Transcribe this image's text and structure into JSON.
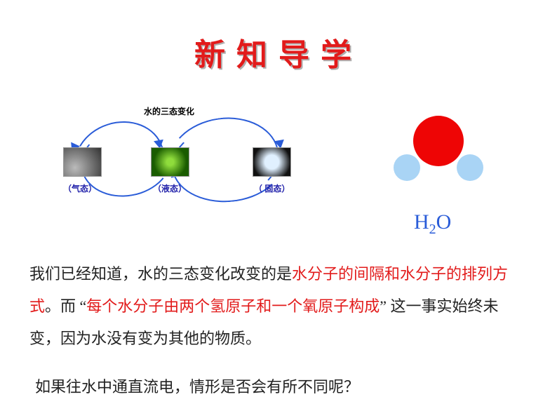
{
  "colors": {
    "title_red": "#e21b1b",
    "title_shadow": "#b0b0b0",
    "arrow_blue": "#2a5cd8",
    "label_blue": "#2020aa",
    "text_black": "#222222",
    "text_red": "#e21b1b",
    "atom_red": "#ee0505",
    "atom_blue": "#a9d4f5",
    "formula_blue": "#2a5cd8",
    "background": "#ffffff"
  },
  "title": {
    "text": "新知导学",
    "fontsize": 44
  },
  "diagram": {
    "caption": "水的三态变化",
    "states": {
      "gas": "（气态）",
      "liquid": "（液态）",
      "solid": "（ 固态）"
    }
  },
  "molecule": {
    "formula_h": "H",
    "formula_sub": "2",
    "formula_o": "O"
  },
  "paragraph1": {
    "seg1": "我们已经知道，水的三态变化改变的是",
    "seg2_red": "水分子的间隔和水分子的排列方式",
    "seg3": "。而 “",
    "seg4_red": "每个水分子由两个氢原子和一个氧原子构成",
    "seg5": "” 这一事实始终未变，因为水没有变为其他的物质。"
  },
  "paragraph2": {
    "seg1": "如果往水中通直流电，情形是否会有所不同呢？"
  }
}
